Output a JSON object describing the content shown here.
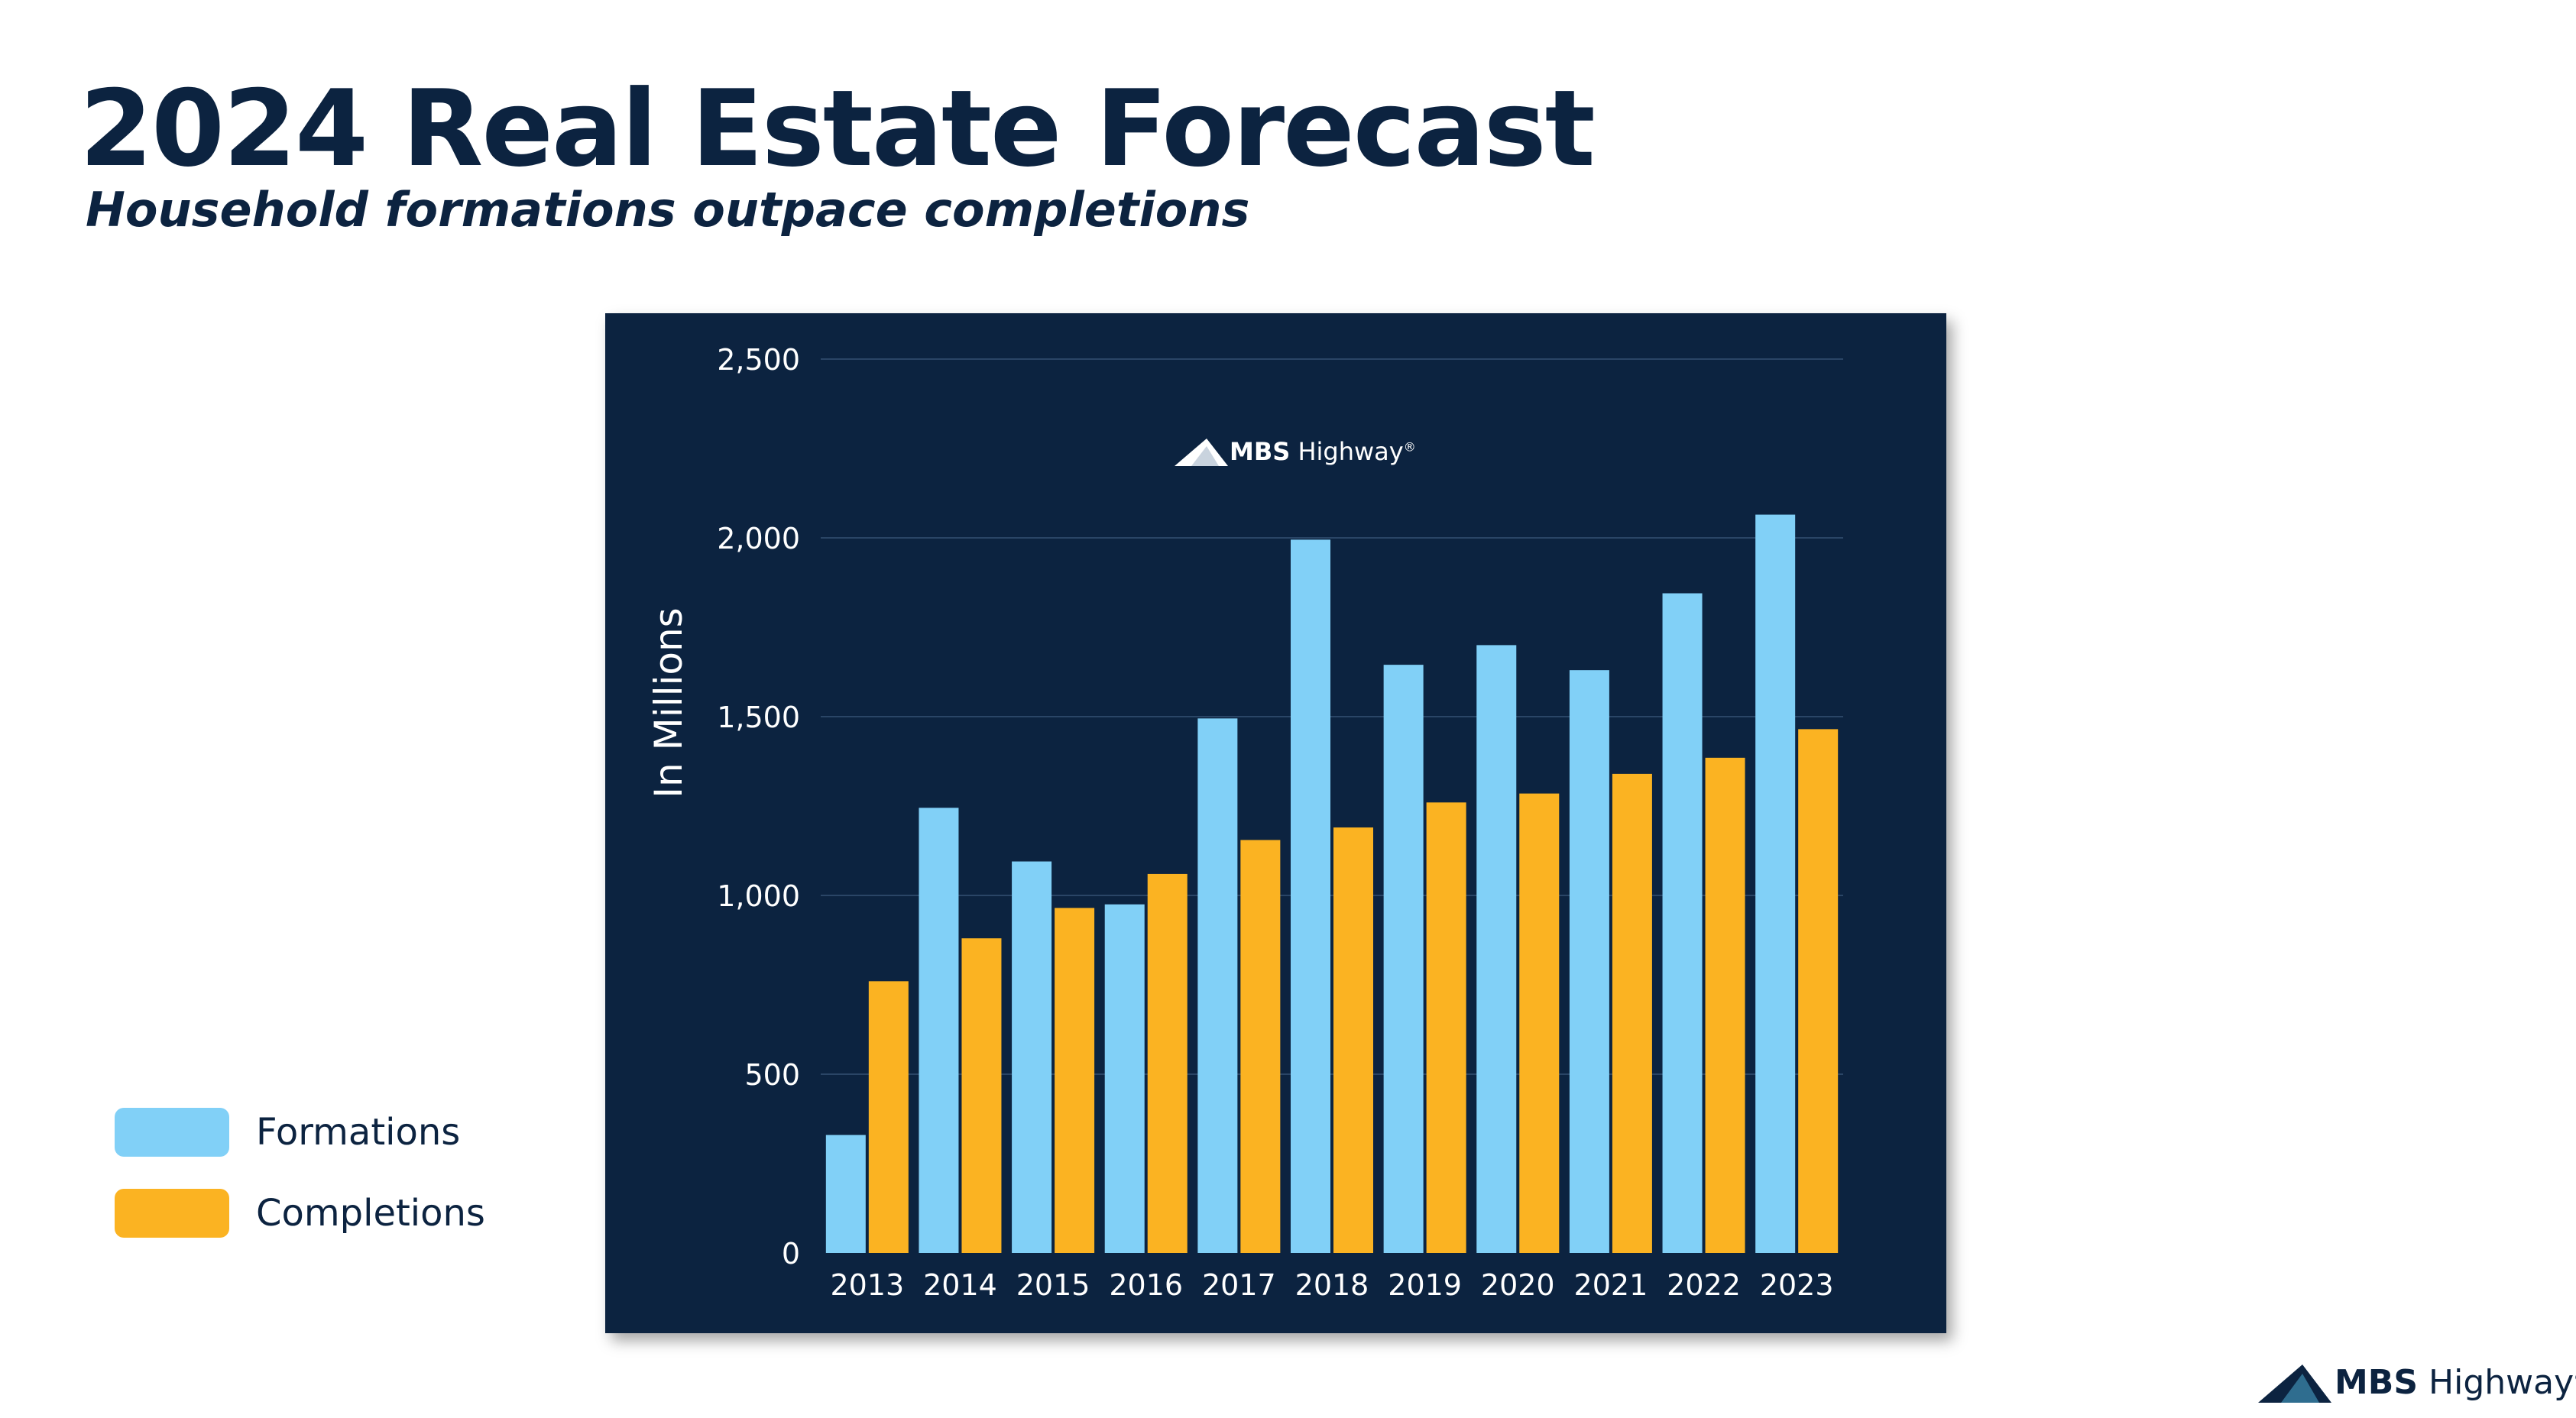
{
  "header": {
    "title": "2024 Real Estate Forecast",
    "subtitle": "Household formations outpace completions"
  },
  "brand": {
    "strong": "MBS",
    "light": " Highway",
    "reg": "®"
  },
  "colors": {
    "background": "#ffffff",
    "panel": "#0c2340",
    "formations": "#81d0f7",
    "completions": "#fbb322",
    "gridline": "#2a4566",
    "text_dark": "#0c2340",
    "text_light": "#ffffff"
  },
  "legend": {
    "items": [
      {
        "label": "Formations",
        "color": "#81d0f7"
      },
      {
        "label": "Completions",
        "color": "#fbb322"
      }
    ]
  },
  "chart_data": {
    "type": "bar",
    "title": "",
    "xlabel": "",
    "ylabel": "In Millions",
    "ylim": [
      0,
      2500
    ],
    "yticks": [
      0,
      500,
      1000,
      1500,
      2000,
      2500
    ],
    "ytick_labels": [
      "0",
      "500",
      "1,000",
      "1,500",
      "2,000",
      "2,500"
    ],
    "grid": true,
    "legend_position": "bottom-left",
    "categories": [
      "2013",
      "2014",
      "2015",
      "2016",
      "2017",
      "2018",
      "2019",
      "2020",
      "2021",
      "2022",
      "2023"
    ],
    "series": [
      {
        "name": "Formations",
        "values": [
          330,
          1245,
          1095,
          975,
          1495,
          1995,
          1645,
          1700,
          1630,
          1845,
          2065
        ]
      },
      {
        "name": "Completions",
        "values": [
          760,
          880,
          965,
          1060,
          1155,
          1190,
          1260,
          1285,
          1340,
          1385,
          1465
        ]
      }
    ]
  }
}
